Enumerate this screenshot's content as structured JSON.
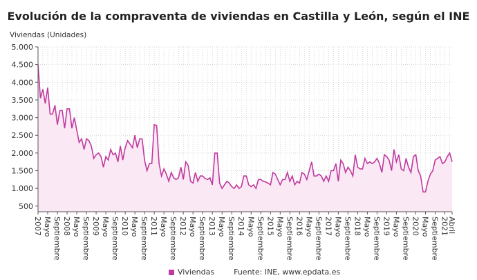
{
  "chart_data": {
    "type": "area",
    "title": "Evolución de la compraventa de viviendas en Castilla y León, según el INE",
    "ylabel": "Viviendas (Unidades)",
    "xlabel": "",
    "start": "2007-01",
    "end": "2021-04",
    "ylim": [
      340,
      5000
    ],
    "yticks": [
      500,
      1000,
      1500,
      2000,
      2500,
      3000,
      3500,
      4000,
      4500,
      5000
    ],
    "ytick_labels": [
      "500",
      "1.000",
      "1.500",
      "2.000",
      "2.500",
      "3.000",
      "3.500",
      "4.000",
      "4.500",
      "5.000"
    ],
    "month_labels": {
      "1": "year",
      "5": "Mayo",
      "9": "Septiembre"
    },
    "last_label": "Abril",
    "grid": true,
    "legend_position": "bottom",
    "series": [
      {
        "name": "Viviendas",
        "color": "#c0399f",
        "fill": "#fbe8f5",
        "values": [
          4500,
          3550,
          3800,
          3400,
          3850,
          3100,
          3100,
          3350,
          2800,
          3200,
          3200,
          2700,
          3250,
          3250,
          2700,
          3000,
          2650,
          2300,
          2400,
          2100,
          2400,
          2350,
          2200,
          1850,
          1950,
          2000,
          1900,
          1600,
          1900,
          1800,
          2100,
          1950,
          2000,
          1750,
          2200,
          1800,
          2150,
          2350,
          2250,
          2150,
          2500,
          2150,
          2400,
          2400,
          1800,
          1500,
          1700,
          1700,
          2800,
          2780,
          1700,
          1350,
          1550,
          1400,
          1200,
          1450,
          1300,
          1250,
          1300,
          1600,
          1250,
          1750,
          1650,
          1200,
          1150,
          1450,
          1200,
          1350,
          1350,
          1280,
          1250,
          1300,
          1100,
          2000,
          2000,
          1150,
          1000,
          1100,
          1200,
          1150,
          1050,
          1000,
          1100,
          1000,
          1050,
          1350,
          1350,
          1100,
          1050,
          1100,
          1000,
          1250,
          1250,
          1200,
          1180,
          1150,
          1100,
          1450,
          1400,
          1250,
          1100,
          1250,
          1250,
          1450,
          1200,
          1350,
          1100,
          1200,
          1150,
          1450,
          1400,
          1250,
          1500,
          1750,
          1350,
          1350,
          1400,
          1350,
          1200,
          1350,
          1200,
          1500,
          1500,
          1700,
          1200,
          1800,
          1700,
          1450,
          1600,
          1500,
          1350,
          1950,
          1600,
          1550,
          1550,
          1850,
          1700,
          1750,
          1700,
          1750,
          1850,
          1700,
          1450,
          1950,
          1900,
          1800,
          1500,
          2100,
          1750,
          1950,
          1550,
          1500,
          1850,
          1600,
          1450,
          1900,
          1950,
          1500,
          1350,
          900,
          900,
          1200,
          1400,
          1500,
          1800,
          1850,
          1900,
          1700,
          1750,
          1900,
          2000,
          1750
        ]
      }
    ],
    "source": "Fuente: INE, www.epdata.es"
  }
}
